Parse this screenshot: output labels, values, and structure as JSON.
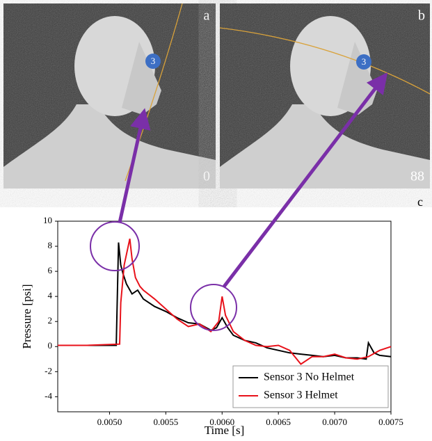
{
  "panels": [
    {
      "label": "a",
      "sensor": "3",
      "frame": "0"
    },
    {
      "label": "b",
      "sensor": "3",
      "frame": "88"
    }
  ],
  "chart_label": "c",
  "chart_data": {
    "type": "line",
    "xlabel": "Time [s]",
    "ylabel": "Pressure [psi]",
    "xlim": [
      0.00454,
      0.0075
    ],
    "ylim": [
      -5.2,
      10
    ],
    "xticks": [
      {
        "value": 0.005,
        "label": "0.0050"
      },
      {
        "value": 0.0055,
        "label": "0.0055"
      },
      {
        "value": 0.006,
        "label": "0.0060"
      },
      {
        "value": 0.0065,
        "label": "0.0065"
      },
      {
        "value": 0.007,
        "label": "0.0070"
      },
      {
        "value": 0.0075,
        "label": "0.0075"
      }
    ],
    "yticks": [
      -4,
      -2,
      0,
      2,
      4,
      6,
      8,
      10
    ],
    "legend": "lower right",
    "series": [
      {
        "name": "Sensor 3 No Helmet",
        "color": "#000000",
        "x": [
          0.00454,
          0.0048,
          0.00506,
          0.00508,
          0.0051,
          0.00512,
          0.00515,
          0.0052,
          0.00525,
          0.0053,
          0.0054,
          0.0055,
          0.0056,
          0.0057,
          0.0058,
          0.0059,
          0.00595,
          0.006,
          0.00605,
          0.0061,
          0.0062,
          0.0063,
          0.0064,
          0.0065,
          0.0066,
          0.0067,
          0.0068,
          0.0069,
          0.007,
          0.0071,
          0.0072,
          0.00728,
          0.0073,
          0.00735,
          0.0074,
          0.0075
        ],
        "values": [
          0.1,
          0.1,
          0.1,
          8.3,
          6.5,
          5.8,
          5,
          4.2,
          4.5,
          3.8,
          3.2,
          2.8,
          2.3,
          1.9,
          1.8,
          1.3,
          1.5,
          2.3,
          1.5,
          0.9,
          0.5,
          0.3,
          -0.1,
          -0.3,
          -0.5,
          -0.6,
          -0.7,
          -0.8,
          -0.7,
          -0.9,
          -0.9,
          -1.0,
          0.3,
          -0.5,
          -0.7,
          -0.8
        ]
      },
      {
        "name": "Sensor 3 Helmet",
        "color": "#e8111a",
        "x": [
          0.00454,
          0.0048,
          0.00509,
          0.0051,
          0.00513,
          0.00518,
          0.0052,
          0.00523,
          0.00527,
          0.0053,
          0.0054,
          0.0055,
          0.0056,
          0.0057,
          0.0058,
          0.0059,
          0.00597,
          0.006,
          0.00603,
          0.0061,
          0.0062,
          0.0063,
          0.0064,
          0.0065,
          0.0066,
          0.0067,
          0.0068,
          0.0069,
          0.007,
          0.0071,
          0.0072,
          0.0073,
          0.0074,
          0.0075
        ],
        "values": [
          0.1,
          0.1,
          0.2,
          3.5,
          6.5,
          8.6,
          7,
          5.5,
          4.8,
          4.5,
          3.8,
          3,
          2.2,
          1.6,
          1.8,
          1.2,
          2,
          4,
          2.5,
          1.2,
          0.5,
          0.1,
          0,
          0.1,
          -0.3,
          -1.4,
          -0.8,
          -0.8,
          -0.6,
          -0.9,
          -1.0,
          -0.8,
          -0.3,
          0
        ]
      }
    ]
  }
}
